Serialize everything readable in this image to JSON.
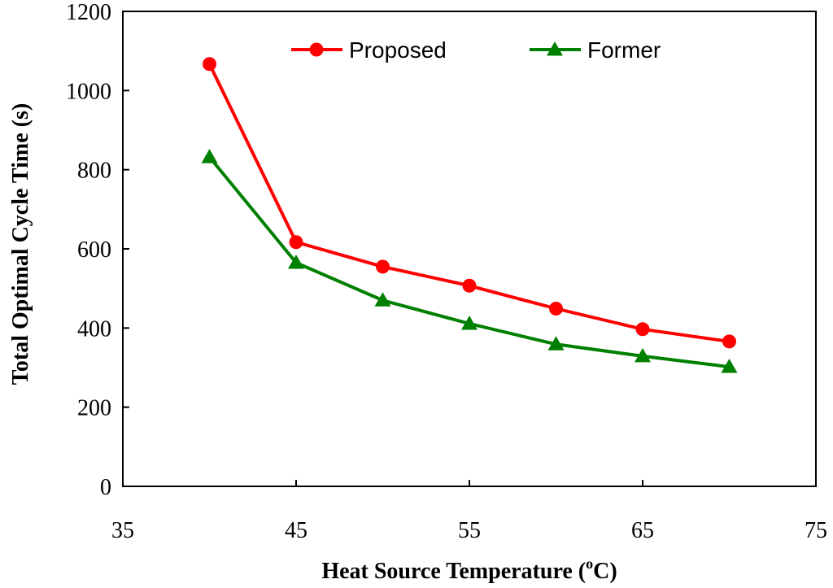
{
  "chart_data": {
    "type": "line",
    "title": "",
    "xlabel": "Heat Source Temperature (",
    "xlabel_sup": "o",
    "xlabel_unit": "C)",
    "ylabel": "Total Optimal Cycle Time (s)",
    "xlim": [
      35,
      75
    ],
    "ylim": [
      0,
      1200
    ],
    "xticks": [
      35,
      45,
      55,
      65,
      75
    ],
    "yticks": [
      0,
      200,
      400,
      600,
      800,
      1000,
      1200
    ],
    "grid": false,
    "legend_position": "top",
    "series": [
      {
        "name": "Proposed",
        "color": "#ff0000",
        "marker": "circle",
        "x": [
          40,
          45,
          50,
          55,
          60,
          65,
          70
        ],
        "y": [
          1067,
          617,
          555,
          507,
          449,
          397,
          366
        ]
      },
      {
        "name": "Former",
        "color": "#008000",
        "marker": "triangle",
        "x": [
          40,
          45,
          50,
          55,
          60,
          65,
          70
        ],
        "y": [
          832,
          565,
          470,
          411,
          359,
          329,
          302
        ]
      }
    ]
  }
}
